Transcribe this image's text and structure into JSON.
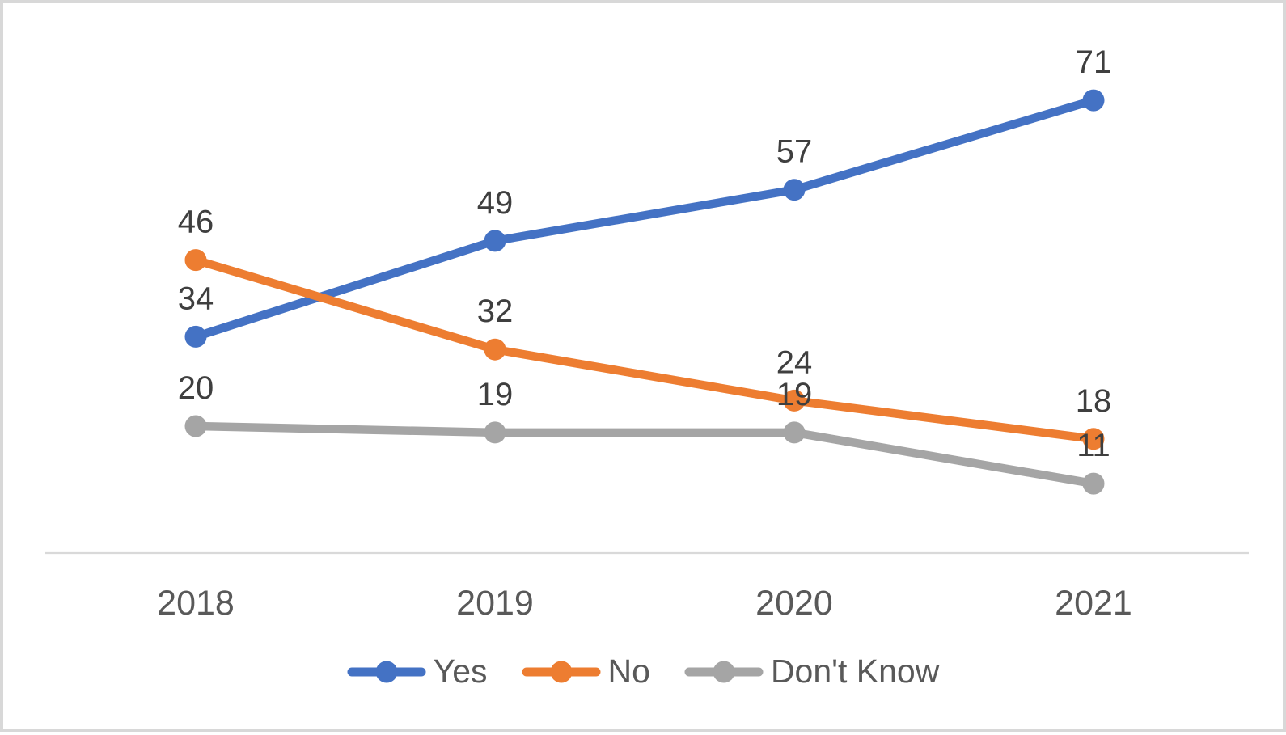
{
  "chart_data": {
    "type": "line",
    "title": "",
    "categories": [
      "2018",
      "2019",
      "2020",
      "2021"
    ],
    "series": [
      {
        "name": "Yes",
        "color": "#4472C4",
        "values": [
          34,
          49,
          57,
          71
        ]
      },
      {
        "name": "No",
        "color": "#ED7D31",
        "values": [
          46,
          32,
          24,
          18
        ]
      },
      {
        "name": "Don't Know",
        "color": "#A5A5A5",
        "values": [
          20,
          19,
          19,
          11
        ]
      }
    ],
    "data_labels": true,
    "legend_position": "bottom",
    "grid": false,
    "ylim": [
      0,
      80
    ],
    "colors": {
      "axis_line": "#D9D9D9",
      "tick_label": "#595959",
      "data_label": "#3F3F3F",
      "legend_label": "#595959",
      "background": "#FFFFFF",
      "frame_border": "#D8D8D8"
    }
  }
}
